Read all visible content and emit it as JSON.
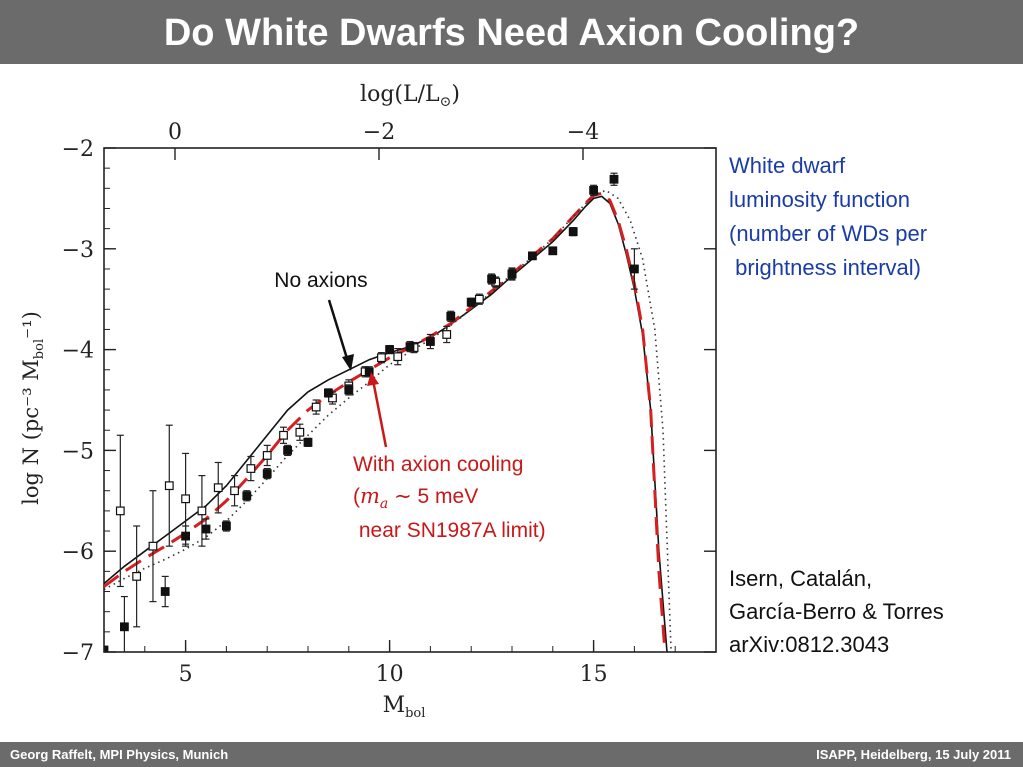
{
  "slide": {
    "title": "Do White Dwarfs Need Axion Cooling?",
    "side_text": [
      "White dwarf",
      "luminosity function",
      "(number of WDs per",
      " brightness interval)"
    ],
    "citation": [
      "Isern, Catalán,",
      "García-Berro & Torres",
      "arXiv:0812.3043"
    ],
    "footer_left": "Georg Raffelt, MPI Physics, Munich",
    "footer_right": "ISAPP, Heidelberg, 15 July 2011"
  },
  "colors": {
    "header_bg": "#6b6b6b",
    "side_text": "#1a3ca8",
    "axion_curve": "#d42020",
    "axion_annotation": "#c81818"
  },
  "chart_data": {
    "type": "scatter",
    "xlabel": "M",
    "xlabel_sub": "bol",
    "ylabel": "log N (pc⁻³ M",
    "ylabel_sub": "bol",
    "ylabel_end": "⁻¹)",
    "top_xlabel": "log(L/L",
    "top_xlabel_sym": "⊙",
    "top_xlabel_end": ")",
    "xlim": [
      3.0,
      18.0
    ],
    "ylim": [
      -7.0,
      -2.0
    ],
    "x_ticks": [
      {
        "value": 5,
        "label": "5"
      },
      {
        "value": 10,
        "label": "10"
      },
      {
        "value": 15,
        "label": "15"
      }
    ],
    "y_ticks": [
      {
        "value": -2,
        "label": "−2"
      },
      {
        "value": -3,
        "label": "−3"
      },
      {
        "value": -4,
        "label": "−4"
      },
      {
        "value": -5,
        "label": "−5"
      },
      {
        "value": -6,
        "label": "−6"
      },
      {
        "value": -7,
        "label": "−7"
      }
    ],
    "top_ticks": [
      {
        "value": 4.74,
        "label": "0"
      },
      {
        "value": 9.74,
        "label": "−2"
      },
      {
        "value": 14.74,
        "label": "−4"
      }
    ],
    "series": [
      {
        "style": "solid",
        "points": [
          [
            3.0,
            -6.32
          ],
          [
            3.5,
            -6.15
          ],
          [
            4.0,
            -6.0
          ],
          [
            4.5,
            -5.85
          ],
          [
            5.0,
            -5.7
          ],
          [
            5.5,
            -5.55
          ],
          [
            6.0,
            -5.35
          ],
          [
            6.5,
            -5.1
          ],
          [
            7.0,
            -4.85
          ],
          [
            7.5,
            -4.6
          ],
          [
            8.0,
            -4.42
          ],
          [
            8.5,
            -4.3
          ],
          [
            9.0,
            -4.2
          ],
          [
            9.5,
            -4.1
          ],
          [
            10.0,
            -4.03
          ],
          [
            10.5,
            -3.97
          ],
          [
            11.0,
            -3.88
          ],
          [
            11.5,
            -3.75
          ],
          [
            12.0,
            -3.6
          ],
          [
            12.5,
            -3.45
          ],
          [
            13.0,
            -3.27
          ],
          [
            13.5,
            -3.1
          ],
          [
            14.0,
            -2.93
          ],
          [
            14.5,
            -2.72
          ],
          [
            14.8,
            -2.58
          ],
          [
            15.0,
            -2.5
          ],
          [
            15.2,
            -2.48
          ],
          [
            15.4,
            -2.55
          ],
          [
            15.6,
            -2.75
          ],
          [
            15.8,
            -3.05
          ],
          [
            16.0,
            -3.4
          ],
          [
            16.2,
            -3.85
          ],
          [
            16.4,
            -4.6
          ],
          [
            16.6,
            -6.0
          ],
          [
            16.8,
            -7.0
          ]
        ]
      },
      {
        "style": "dashed-red",
        "points": [
          [
            3.0,
            -6.35
          ],
          [
            3.5,
            -6.2
          ],
          [
            4.0,
            -6.07
          ],
          [
            4.5,
            -5.95
          ],
          [
            5.0,
            -5.82
          ],
          [
            5.5,
            -5.68
          ],
          [
            6.0,
            -5.5
          ],
          [
            6.5,
            -5.28
          ],
          [
            7.0,
            -5.05
          ],
          [
            7.5,
            -4.8
          ],
          [
            8.0,
            -4.6
          ],
          [
            8.5,
            -4.45
          ],
          [
            9.0,
            -4.32
          ],
          [
            9.5,
            -4.2
          ],
          [
            10.0,
            -4.08
          ],
          [
            10.5,
            -3.98
          ],
          [
            11.0,
            -3.87
          ],
          [
            11.5,
            -3.74
          ],
          [
            12.0,
            -3.58
          ],
          [
            12.5,
            -3.42
          ],
          [
            13.0,
            -3.25
          ],
          [
            13.5,
            -3.07
          ],
          [
            14.0,
            -2.9
          ],
          [
            14.5,
            -2.68
          ],
          [
            14.8,
            -2.55
          ],
          [
            15.0,
            -2.47
          ],
          [
            15.2,
            -2.45
          ],
          [
            15.4,
            -2.52
          ],
          [
            15.6,
            -2.72
          ],
          [
            15.8,
            -3.0
          ],
          [
            16.0,
            -3.35
          ],
          [
            16.2,
            -3.8
          ],
          [
            16.4,
            -4.6
          ],
          [
            16.6,
            -6.2
          ],
          [
            16.75,
            -7.0
          ]
        ]
      },
      {
        "style": "dotted",
        "points": [
          [
            3.0,
            -6.38
          ],
          [
            3.5,
            -6.27
          ],
          [
            4.0,
            -6.17
          ],
          [
            4.5,
            -6.08
          ],
          [
            5.0,
            -5.98
          ],
          [
            5.5,
            -5.86
          ],
          [
            6.0,
            -5.7
          ],
          [
            6.5,
            -5.5
          ],
          [
            7.0,
            -5.28
          ],
          [
            7.5,
            -5.05
          ],
          [
            8.0,
            -4.85
          ],
          [
            8.5,
            -4.65
          ],
          [
            9.0,
            -4.48
          ],
          [
            9.5,
            -4.32
          ],
          [
            10.0,
            -4.15
          ],
          [
            10.5,
            -4.02
          ],
          [
            11.0,
            -3.9
          ],
          [
            11.5,
            -3.76
          ],
          [
            12.0,
            -3.6
          ],
          [
            12.5,
            -3.43
          ],
          [
            13.0,
            -3.25
          ],
          [
            13.5,
            -3.08
          ],
          [
            14.0,
            -2.9
          ],
          [
            14.5,
            -2.68
          ],
          [
            15.0,
            -2.47
          ],
          [
            15.3,
            -2.42
          ],
          [
            15.6,
            -2.5
          ],
          [
            15.9,
            -2.72
          ],
          [
            16.2,
            -3.1
          ],
          [
            16.5,
            -3.8
          ],
          [
            16.7,
            -4.8
          ],
          [
            16.9,
            -7.0
          ]
        ]
      },
      {
        "style": "open-squares",
        "points": [
          {
            "x": 3.4,
            "y": -5.6,
            "err": 0.75
          },
          {
            "x": 3.8,
            "y": -6.25,
            "err": 0.5
          },
          {
            "x": 4.2,
            "y": -5.95,
            "err": 0.55
          },
          {
            "x": 4.6,
            "y": -5.35,
            "err": 0.6
          },
          {
            "x": 5.0,
            "y": -5.48,
            "err": 0.45
          },
          {
            "x": 5.4,
            "y": -5.6,
            "err": 0.35
          },
          {
            "x": 5.8,
            "y": -5.37,
            "err": 0.25
          },
          {
            "x": 6.2,
            "y": -5.4,
            "err": 0.15
          },
          {
            "x": 6.6,
            "y": -5.18,
            "err": 0.12
          },
          {
            "x": 7.0,
            "y": -5.05,
            "err": 0.1
          },
          {
            "x": 7.4,
            "y": -4.85,
            "err": 0.08
          },
          {
            "x": 7.8,
            "y": -4.82,
            "err": 0.08
          },
          {
            "x": 8.2,
            "y": -4.57,
            "err": 0.07
          },
          {
            "x": 8.6,
            "y": -4.48,
            "err": 0.06
          },
          {
            "x": 9.0,
            "y": -4.36,
            "err": 0.06
          },
          {
            "x": 9.4,
            "y": -4.22,
            "err": 0.05
          },
          {
            "x": 9.8,
            "y": -4.08,
            "err": 0.05
          },
          {
            "x": 10.2,
            "y": -4.07,
            "err": 0.08
          },
          {
            "x": 10.6,
            "y": -3.98,
            "err": 0.05
          },
          {
            "x": 11.4,
            "y": -3.85,
            "err": 0.08
          },
          {
            "x": 12.2,
            "y": -3.5,
            "err": 0.05
          },
          {
            "x": 12.6,
            "y": -3.33,
            "err": 0.05
          },
          {
            "x": 13.0,
            "y": -3.25,
            "err": 0.06
          }
        ]
      },
      {
        "style": "filled-squares",
        "points": [
          {
            "x": 3.0,
            "y": -6.98,
            "err": 0.0
          },
          {
            "x": 3.5,
            "y": -6.75,
            "err": 0.3
          },
          {
            "x": 4.5,
            "y": -6.4,
            "err": 0.15
          },
          {
            "x": 5.0,
            "y": -5.85,
            "err": 0.1
          },
          {
            "x": 5.5,
            "y": -5.78,
            "err": 0.1
          },
          {
            "x": 6.0,
            "y": -5.75,
            "err": 0.05
          },
          {
            "x": 6.5,
            "y": -5.45,
            "err": 0.05
          },
          {
            "x": 7.0,
            "y": -5.23,
            "err": 0.05
          },
          {
            "x": 7.5,
            "y": -5.0,
            "err": 0.05
          },
          {
            "x": 8.0,
            "y": -4.92,
            "err": 0.04
          },
          {
            "x": 8.5,
            "y": -4.43,
            "err": 0.04
          },
          {
            "x": 9.0,
            "y": -4.4,
            "err": 0.05
          },
          {
            "x": 9.5,
            "y": -4.22,
            "err": 0.05
          },
          {
            "x": 10.0,
            "y": -4.0,
            "err": 0.04
          },
          {
            "x": 10.5,
            "y": -3.97,
            "err": 0.05
          },
          {
            "x": 11.0,
            "y": -3.92,
            "err": 0.07
          },
          {
            "x": 11.5,
            "y": -3.67,
            "err": 0.05
          },
          {
            "x": 12.0,
            "y": -3.53,
            "err": 0.04
          },
          {
            "x": 12.5,
            "y": -3.3,
            "err": 0.05
          },
          {
            "x": 13.0,
            "y": -3.25,
            "err": 0.05
          },
          {
            "x": 13.5,
            "y": -3.07,
            "err": 0.03
          },
          {
            "x": 14.0,
            "y": -3.02,
            "err": 0.03
          },
          {
            "x": 14.5,
            "y": -2.83,
            "err": 0.04
          },
          {
            "x": 15.0,
            "y": -2.42,
            "err": 0.05
          },
          {
            "x": 15.5,
            "y": -2.31,
            "err": 0.06
          },
          {
            "x": 16.0,
            "y": -3.2,
            "err": 0.2
          }
        ]
      }
    ],
    "annotations": {
      "no_axions": "No axions",
      "axion_line1": "With axion cooling",
      "axion_line2_pre": "(",
      "axion_line2_m": "m",
      "axion_line2_sub": "a",
      "axion_line2_post": " ∼ 5 meV",
      "axion_line3": " near SN1987A limit)"
    }
  }
}
